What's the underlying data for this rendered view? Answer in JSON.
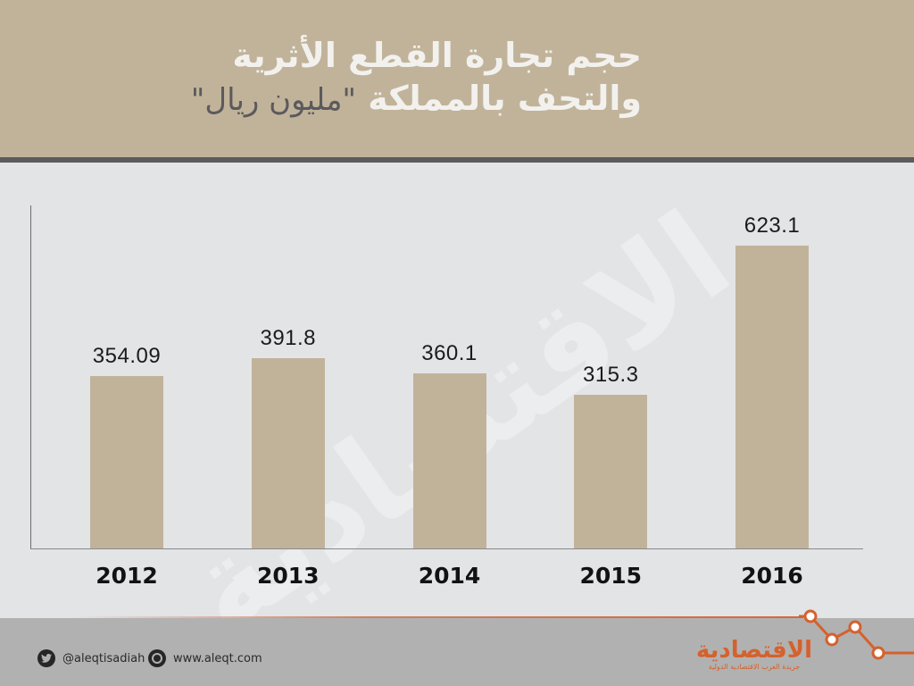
{
  "header": {
    "title_line1": "حجم تجارة القطع الأثرية",
    "title_line2": "والتحف بالمملكة",
    "unit": "\"مليون ريال\""
  },
  "watermark": "الاقتصادية",
  "chart_data": {
    "type": "bar",
    "title": "حجم تجارة القطع الأثرية والتحف بالمملكة \"مليون ريال\"",
    "xlabel": "",
    "ylabel": "مليون ريال",
    "categories": [
      "2012",
      "2013",
      "2014",
      "2015",
      "2016"
    ],
    "values": [
      354.09,
      391.8,
      360.1,
      315.3,
      623.1
    ],
    "value_labels": [
      "354.09",
      "391.8",
      "360.1",
      "315.3",
      "623.1"
    ],
    "grid": false,
    "legend": null,
    "bar_color": "#c1b39a"
  },
  "footer": {
    "twitter_handle": "@aleqtisadiah",
    "website": "www.aleqt.com",
    "logo_text": "الاقتصادية",
    "logo_subtext": "جريدة العرب الاقتصادية الدولية",
    "accent_color": "#d5612d"
  }
}
